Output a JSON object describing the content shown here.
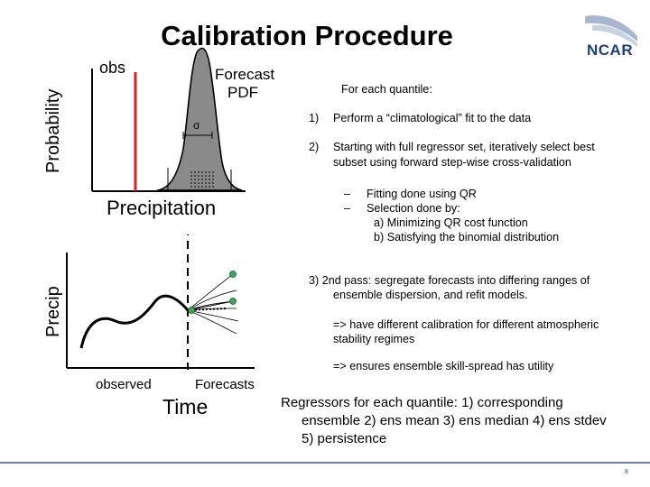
{
  "slide": {
    "title": "Calibration Procedure",
    "logo_text": "NCAR",
    "page_number": "8"
  },
  "pdf_figure": {
    "y_axis_label": "Probability",
    "x_axis_label": "Precipitation",
    "obs_label": "obs",
    "forecast_label_line1": "Forecast",
    "forecast_label_line2": "PDF",
    "sigma_symbol": "σ"
  },
  "ts_figure": {
    "y_axis_label": "Precip",
    "x_axis_label": "Time",
    "observed_label": "observed",
    "forecasts_label": "Forecasts"
  },
  "procedure": {
    "heading": "For each quantile:",
    "step1_num": "1)",
    "step1_text": "Perform a “climatological” fit to the data",
    "step2_num": "2)",
    "step2_line1": "Starting with full regressor set, iteratively select best",
    "step2_line2": "subset using forward step-wise cross-validation",
    "dash1_mark": "–",
    "dash1_text": "Fitting done using QR",
    "dash2_mark": "–",
    "dash2_text": "Selection done by:",
    "sub_a": "a)  Minimizing QR cost function",
    "sub_b": "b)  Satisfying the binomial distribution",
    "step3_line1": "3) 2nd pass: segregate forecasts into differing ranges of",
    "step3_line2": "ensemble dispersion, and refit models.",
    "note1_line1": "=> have different calibration for different atmospheric",
    "note1_line2": "stability regimes",
    "note2": "=> ensures ensemble skill-spread has utility"
  },
  "regressors": {
    "line1": "Regressors for each quantile: 1) corresponding",
    "line2": "ensemble  2) ens mean  3) ens median 4) ens stdev",
    "line3": "5) persistence"
  },
  "colors": {
    "obs_line": "#e02020",
    "pdf_fill": "#8a8a8a",
    "ensemble_dot": "#3aa65a",
    "logo_blue": "#1f3f7a"
  }
}
